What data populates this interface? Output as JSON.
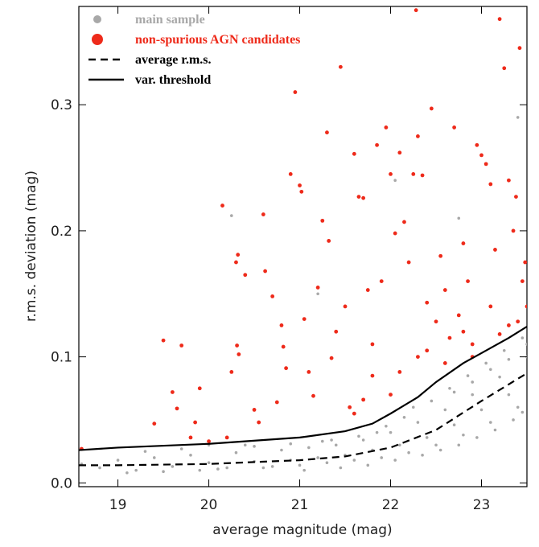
{
  "chart_data": {
    "type": "scatter",
    "x_label": "average magnitude (mag)",
    "y_label": "r.m.s. deviation (mag)",
    "xlim": [
      18.57,
      23.5
    ],
    "ylim": [
      -0.003,
      0.378
    ],
    "xticks": [
      19,
      20,
      21,
      22,
      23
    ],
    "yticks": [
      {
        "value": 0,
        "label": "0.0"
      },
      0.1,
      0.2,
      0.3
    ],
    "legend": "top-left",
    "series": [
      {
        "name": "main sample",
        "type": "scatter",
        "color": "#a8a8a8",
        "x": [
          18.6,
          18.8,
          19.0,
          19.2,
          19.4,
          19.6,
          19.8,
          20.0,
          20.1,
          20.3,
          20.5,
          20.6,
          20.8,
          20.9,
          21.0,
          21.1,
          21.2,
          21.3,
          21.4,
          21.5,
          21.6,
          21.7,
          21.8,
          21.9,
          22.0,
          22.1,
          22.2,
          22.3,
          22.4,
          22.5,
          22.6,
          22.7,
          22.8,
          22.9,
          23.0,
          23.1,
          23.2,
          23.3,
          23.4,
          23.5,
          19.1,
          19.5,
          19.9,
          20.2,
          20.7,
          21.05,
          21.45,
          21.75,
          22.05,
          22.35,
          22.55,
          22.75,
          22.95,
          23.15,
          23.35,
          23.45,
          20.4,
          21.25,
          21.85,
          22.25,
          22.65,
          22.85,
          23.05,
          23.25,
          23.45,
          19.3,
          19.7,
          20.0,
          20.5,
          20.9,
          21.35,
          21.65,
          21.95,
          22.15,
          22.45,
          22.7,
          22.9,
          23.1,
          23.3,
          23.5,
          20.25,
          21.2,
          22.05,
          22.75,
          23.4
        ],
        "values": [
          0.015,
          0.012,
          0.018,
          0.01,
          0.02,
          0.013,
          0.022,
          0.016,
          0.011,
          0.024,
          0.017,
          0.012,
          0.026,
          0.018,
          0.014,
          0.028,
          0.02,
          0.016,
          0.03,
          0.022,
          0.018,
          0.034,
          0.026,
          0.02,
          0.04,
          0.03,
          0.024,
          0.048,
          0.036,
          0.03,
          0.058,
          0.046,
          0.038,
          0.07,
          0.058,
          0.048,
          0.084,
          0.07,
          0.06,
          0.1,
          0.008,
          0.009,
          0.01,
          0.012,
          0.013,
          0.01,
          0.012,
          0.014,
          0.018,
          0.022,
          0.026,
          0.03,
          0.036,
          0.042,
          0.05,
          0.056,
          0.03,
          0.033,
          0.04,
          0.06,
          0.075,
          0.085,
          0.095,
          0.105,
          0.115,
          0.025,
          0.027,
          0.03,
          0.029,
          0.031,
          0.034,
          0.037,
          0.045,
          0.052,
          0.065,
          0.072,
          0.08,
          0.09,
          0.098,
          0.11,
          0.212,
          0.15,
          0.24,
          0.21,
          0.29
        ]
      },
      {
        "name": "non-spurious AGN candidates",
        "type": "scatter",
        "color": "#ee2a1a",
        "x": [
          18.6,
          19.4,
          19.5,
          19.6,
          19.65,
          19.7,
          19.8,
          19.85,
          19.9,
          20.0,
          20.15,
          20.2,
          20.25,
          20.3,
          20.32,
          20.31,
          20.33,
          20.4,
          20.5,
          20.55,
          20.6,
          20.62,
          20.7,
          20.75,
          20.8,
          20.82,
          20.85,
          20.9,
          20.95,
          21.0,
          21.02,
          21.05,
          21.1,
          21.15,
          21.2,
          21.25,
          21.3,
          21.32,
          21.35,
          21.4,
          21.45,
          21.5,
          21.55,
          21.6,
          21.65,
          21.7,
          21.75,
          21.8,
          21.85,
          21.9,
          21.95,
          22.0,
          22.05,
          22.1,
          22.15,
          22.2,
          22.25,
          22.3,
          22.28,
          22.35,
          22.4,
          22.45,
          22.5,
          22.55,
          22.6,
          22.65,
          22.7,
          22.75,
          22.8,
          22.85,
          22.9,
          22.95,
          23.0,
          23.05,
          23.1,
          23.15,
          23.2,
          23.25,
          23.3,
          23.35,
          23.38,
          23.42,
          23.45,
          23.48,
          23.5,
          21.8,
          22.1,
          22.3,
          22.6,
          22.9,
          23.2,
          23.3,
          23.4,
          21.7,
          22.0,
          21.6,
          22.4,
          22.8,
          23.1
        ],
        "values": [
          0.027,
          0.047,
          0.113,
          0.072,
          0.059,
          0.109,
          0.036,
          0.048,
          0.075,
          0.033,
          0.22,
          0.036,
          0.088,
          0.175,
          0.181,
          0.109,
          0.102,
          0.165,
          0.058,
          0.048,
          0.213,
          0.168,
          0.148,
          0.064,
          0.125,
          0.108,
          0.091,
          0.245,
          0.31,
          0.236,
          0.231,
          0.13,
          0.088,
          0.069,
          0.155,
          0.208,
          0.278,
          0.192,
          0.099,
          0.12,
          0.33,
          0.14,
          0.06,
          0.261,
          0.227,
          0.226,
          0.153,
          0.11,
          0.268,
          0.16,
          0.282,
          0.245,
          0.198,
          0.262,
          0.207,
          0.175,
          0.245,
          0.275,
          0.375,
          0.244,
          0.143,
          0.297,
          0.128,
          0.18,
          0.153,
          0.115,
          0.282,
          0.133,
          0.19,
          0.16,
          0.11,
          0.268,
          0.26,
          0.253,
          0.237,
          0.185,
          0.368,
          0.329,
          0.24,
          0.2,
          0.227,
          0.345,
          0.16,
          0.175,
          0.14,
          0.085,
          0.088,
          0.1,
          0.095,
          0.1,
          0.118,
          0.125,
          0.128,
          0.066,
          0.07,
          0.055,
          0.105,
          0.12,
          0.14
        ]
      },
      {
        "name": "average r.m.s.",
        "type": "line",
        "dashed": true,
        "color": "#000000",
        "x": [
          18.57,
          19,
          20,
          21,
          21.5,
          22,
          22.5,
          23,
          23.5
        ],
        "values": [
          0.014,
          0.014,
          0.015,
          0.018,
          0.021,
          0.028,
          0.042,
          0.065,
          0.087
        ]
      },
      {
        "name": "var. threshold",
        "type": "line",
        "dashed": false,
        "color": "#000000",
        "x": [
          18.57,
          19,
          20,
          21,
          21.5,
          21.8,
          22,
          22.3,
          22.5,
          22.8,
          23,
          23.3,
          23.5
        ],
        "values": [
          0.026,
          0.028,
          0.031,
          0.036,
          0.041,
          0.047,
          0.055,
          0.068,
          0.08,
          0.095,
          0.103,
          0.115,
          0.124
        ]
      }
    ]
  }
}
